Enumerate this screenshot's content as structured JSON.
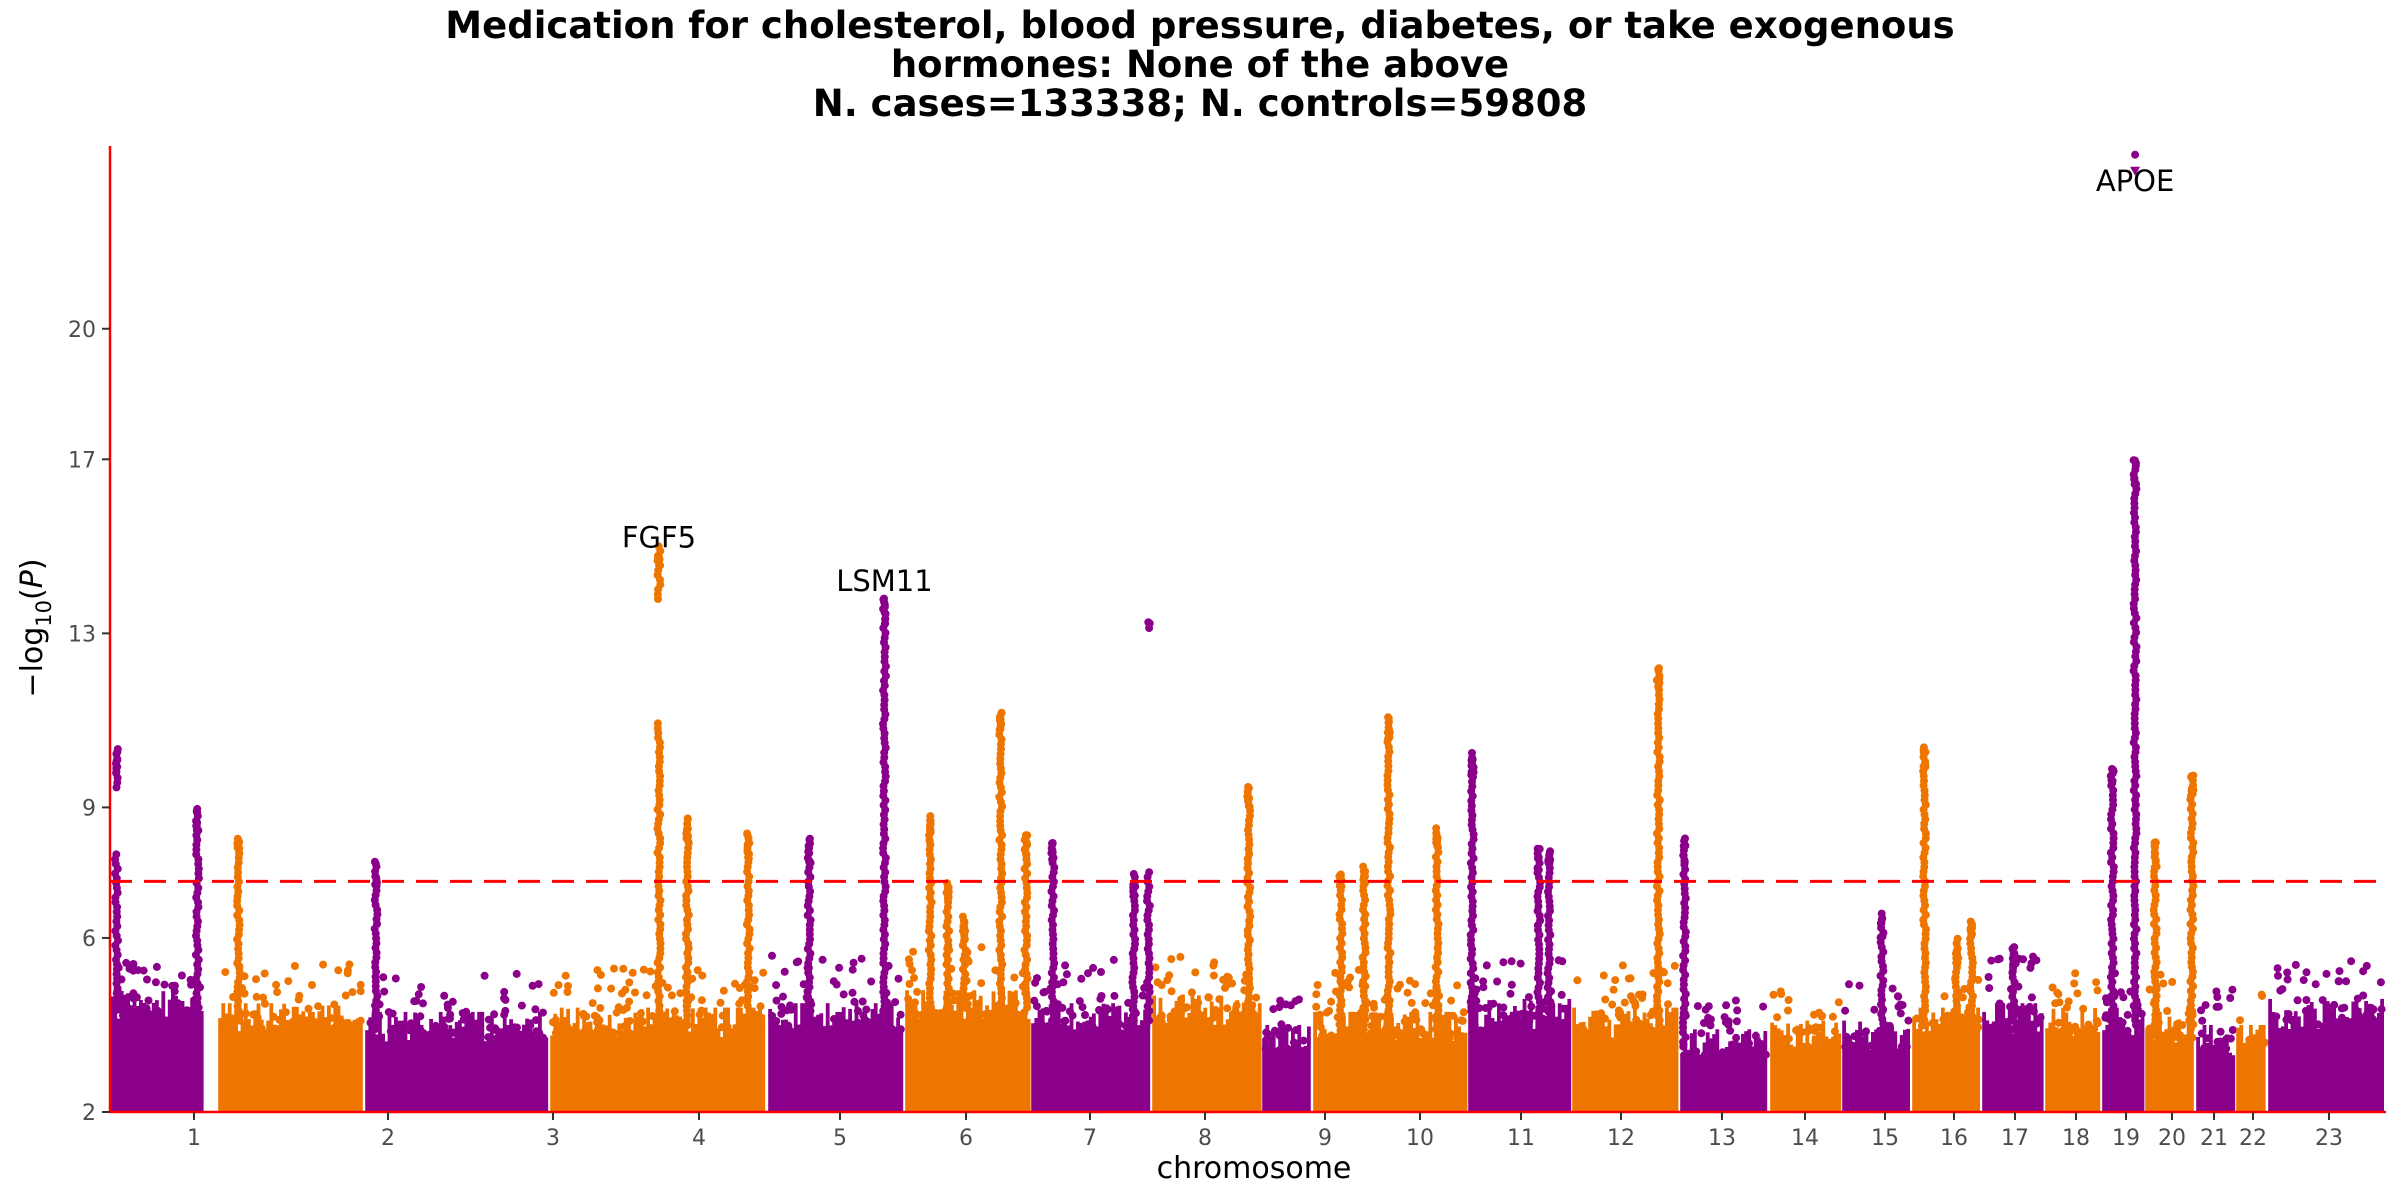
{
  "title_lines": [
    "Medication for cholesterol, blood pressure, diabetes, or take exogenous",
    "hormones: None of the above",
    "N. cases=133338; N. controls=59808"
  ],
  "chart_data": {
    "type": "scatter",
    "subtype": "manhattan",
    "xlabel": "chromosome",
    "ylabel": "−log10(P)",
    "ylim": [
      2,
      24.2
    ],
    "y_ticks": [
      2,
      6,
      9,
      13,
      17,
      20
    ],
    "significance_threshold": 7.3,
    "threshold_style": "red dashed line",
    "colors": {
      "odd": "#8b008b",
      "even": "#ee7600",
      "threshold": "#ff0000",
      "axis": "#ff0000"
    },
    "chromosomes": [
      {
        "label": "1",
        "floor_max": 4.6,
        "cap": 5.3
      },
      {
        "label": "2",
        "floor_max": 4.3,
        "cap": 5.2
      },
      {
        "label": "3",
        "floor_max": 4.1,
        "cap": 5.0
      },
      {
        "label": "4",
        "floor_max": 4.2,
        "cap": 5.1
      },
      {
        "label": "5",
        "floor_max": 4.3,
        "cap": 5.4
      },
      {
        "label": "6",
        "floor_max": 4.6,
        "cap": 5.6
      },
      {
        "label": "7",
        "floor_max": 4.3,
        "cap": 5.3
      },
      {
        "label": "8",
        "floor_max": 4.5,
        "cap": 5.4
      },
      {
        "label": "9",
        "floor_max": 3.8,
        "cap": 4.6
      },
      {
        "label": "10",
        "floor_max": 4.1,
        "cap": 5.2
      },
      {
        "label": "11",
        "floor_max": 4.4,
        "cap": 5.4
      },
      {
        "label": "12",
        "floor_max": 4.2,
        "cap": 5.2
      },
      {
        "label": "13",
        "floor_max": 3.7,
        "cap": 4.5
      },
      {
        "label": "14",
        "floor_max": 3.9,
        "cap": 4.6
      },
      {
        "label": "15",
        "floor_max": 3.9,
        "cap": 4.8
      },
      {
        "label": "16",
        "floor_max": 4.2,
        "cap": 5.1
      },
      {
        "label": "17",
        "floor_max": 4.3,
        "cap": 5.4
      },
      {
        "label": "18",
        "floor_max": 4.2,
        "cap": 5.0
      },
      {
        "label": "19",
        "floor_max": 4.2,
        "cap": 5.0
      },
      {
        "label": "20",
        "floor_max": 4.1,
        "cap": 5.0
      },
      {
        "label": "21",
        "floor_max": 3.8,
        "cap": 4.7
      },
      {
        "label": "22",
        "floor_max": 3.8,
        "cap": 4.6
      },
      {
        "label": "23",
        "floor_max": 4.4,
        "cap": 5.3
      }
    ],
    "peaks": [
      {
        "chr": "1",
        "pos": 0.07,
        "top": 10.4,
        "gap": [
          8.0,
          9.4
        ]
      },
      {
        "chr": "1",
        "pos": 0.93,
        "top": 9.0
      },
      {
        "chr": "2",
        "pos": 0.14,
        "top": 8.3
      },
      {
        "chr": "3",
        "pos": 0.06,
        "top": 7.8
      },
      {
        "chr": "4",
        "pos": 0.5,
        "top": 15.0,
        "gap": [
          11.0,
          13.7
        ]
      },
      {
        "chr": "4",
        "pos": 0.63,
        "top": 8.8
      },
      {
        "chr": "4",
        "pos": 0.91,
        "top": 8.4
      },
      {
        "chr": "5",
        "pos": 0.3,
        "top": 8.3
      },
      {
        "chr": "5",
        "pos": 0.85,
        "top": 13.8
      },
      {
        "chr": "6",
        "pos": 0.2,
        "top": 8.8
      },
      {
        "chr": "6",
        "pos": 0.34,
        "top": 7.3
      },
      {
        "chr": "6",
        "pos": 0.47,
        "top": 6.5
      },
      {
        "chr": "6",
        "pos": 0.76,
        "top": 11.2
      },
      {
        "chr": "6",
        "pos": 0.96,
        "top": 8.4
      },
      {
        "chr": "7",
        "pos": 0.18,
        "top": 8.2
      },
      {
        "chr": "7",
        "pos": 0.85,
        "top": 7.5
      },
      {
        "chr": "7",
        "pos": 0.97,
        "top": 13.3,
        "gap": [
          7.6,
          13.1
        ]
      },
      {
        "chr": "8",
        "pos": 0.88,
        "top": 9.5
      },
      {
        "chr": "10",
        "pos": 0.18,
        "top": 7.5
      },
      {
        "chr": "10",
        "pos": 0.33,
        "top": 7.7
      },
      {
        "chr": "10",
        "pos": 0.49,
        "top": 11.1
      },
      {
        "chr": "10",
        "pos": 0.8,
        "top": 8.6
      },
      {
        "chr": "11",
        "pos": 0.04,
        "top": 10.3
      },
      {
        "chr": "11",
        "pos": 0.68,
        "top": 8.1
      },
      {
        "chr": "11",
        "pos": 0.78,
        "top": 8.0
      },
      {
        "chr": "12",
        "pos": 0.8,
        "top": 12.2
      },
      {
        "chr": "13",
        "pos": 0.05,
        "top": 8.3
      },
      {
        "chr": "15",
        "pos": 0.57,
        "top": 6.6
      },
      {
        "chr": "16",
        "pos": 0.18,
        "top": 10.4
      },
      {
        "chr": "16",
        "pos": 0.64,
        "top": 6.0
      },
      {
        "chr": "16",
        "pos": 0.85,
        "top": 6.4
      },
      {
        "chr": "17",
        "pos": 0.5,
        "top": 5.8
      },
      {
        "chr": "19",
        "pos": 0.24,
        "top": 9.9
      },
      {
        "chr": "19",
        "pos": 0.77,
        "top": 17.0,
        "gap": [
          18.0,
          16.9
        ]
      },
      {
        "chr": "20",
        "pos": 0.2,
        "top": 8.2
      },
      {
        "chr": "20",
        "pos": 0.92,
        "top": 9.8
      }
    ],
    "annotations": [
      {
        "text": "FGF5",
        "chr": "4",
        "pos": 0.5,
        "y": 15.2
      },
      {
        "text": "LSM11",
        "chr": "5",
        "pos": 0.85,
        "y": 14.2
      },
      {
        "text": "APOE",
        "chr": "19",
        "pos": 0.77,
        "y": 23.4
      }
    ],
    "apoe_top_point": {
      "chr": "19",
      "pos": 0.77,
      "y": 24.0,
      "offscale": true
    }
  }
}
